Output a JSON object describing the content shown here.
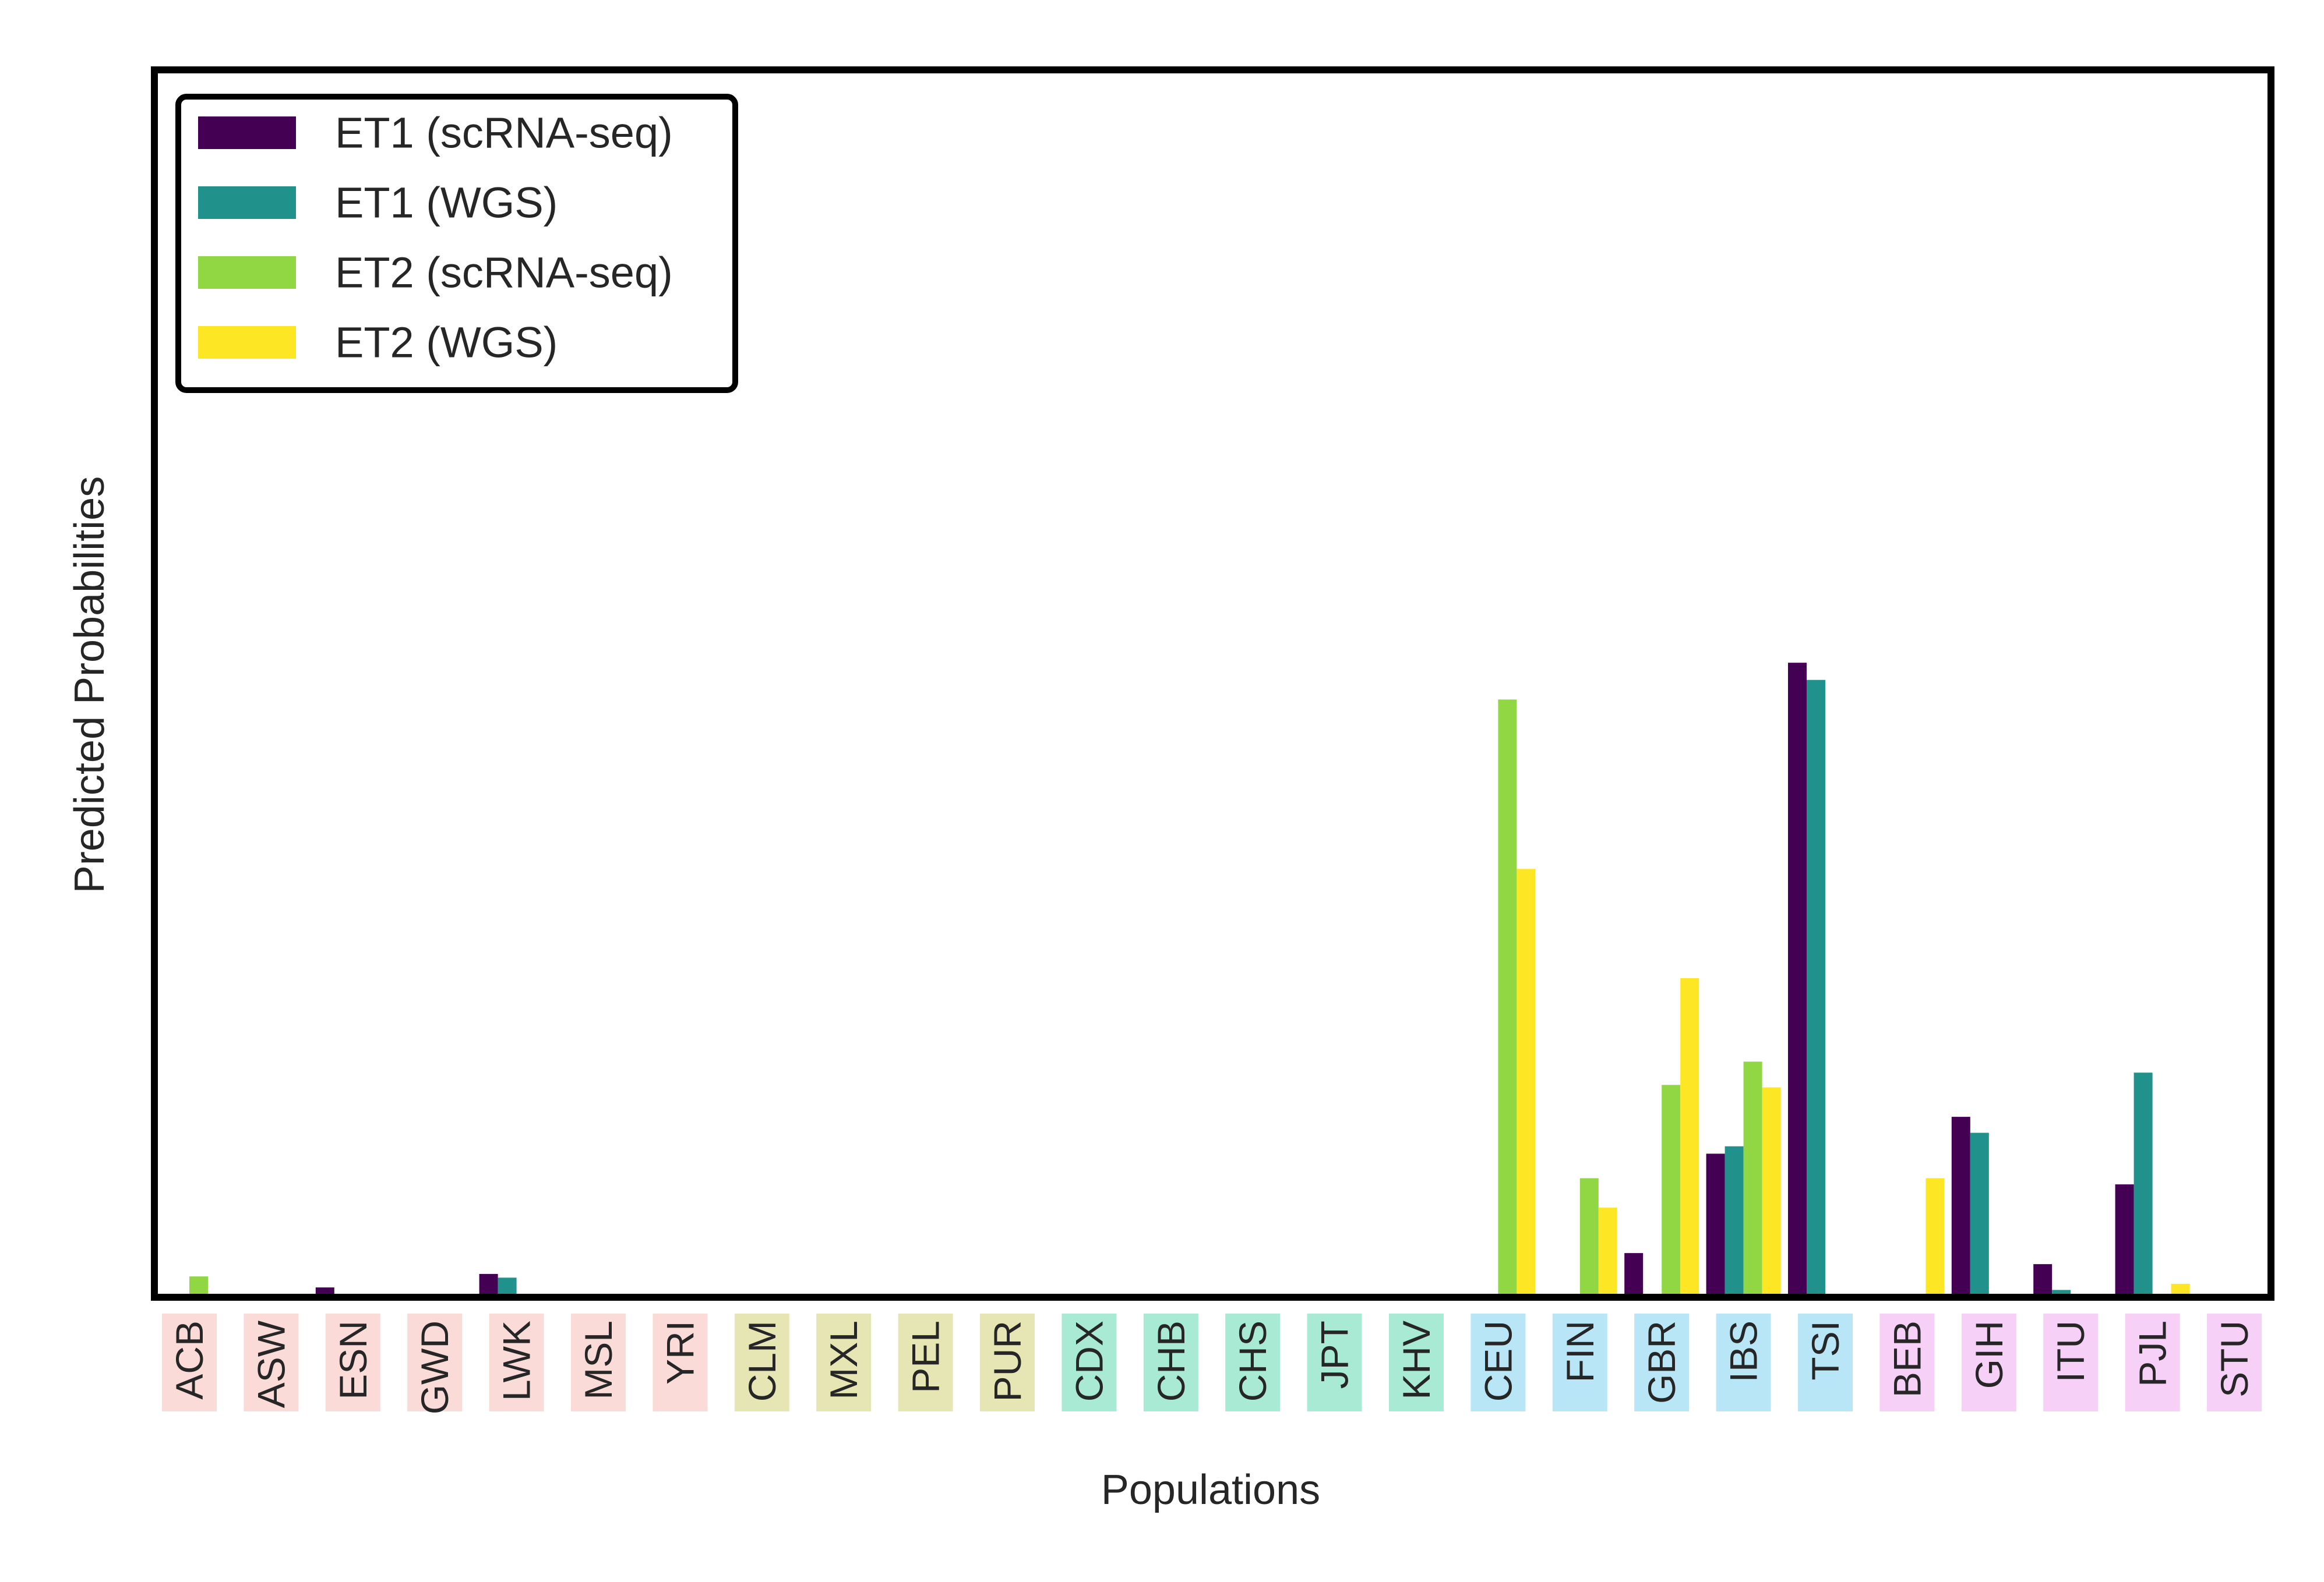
{
  "chart_data": {
    "type": "bar",
    "xlabel": "Populations",
    "ylabel": "Predicted Probabilities",
    "ylim": [
      0,
      1
    ],
    "grid": false,
    "legend_position": "top-left",
    "categories": [
      "ACB",
      "ASW",
      "ESN",
      "GWD",
      "LWK",
      "MSL",
      "YRI",
      "CLM",
      "MXL",
      "PEL",
      "PUR",
      "CDX",
      "CHB",
      "CHS",
      "JPT",
      "KHV",
      "CEU",
      "FIN",
      "GBR",
      "IBS",
      "TSI",
      "BEB",
      "GIH",
      "ITU",
      "PJL",
      "STU"
    ],
    "category_groups": [
      {
        "color": "#fadbd8",
        "members": [
          "ACB",
          "ASW",
          "ESN",
          "GWD",
          "LWK",
          "MSL",
          "YRI"
        ]
      },
      {
        "color": "#e6e6b4",
        "members": [
          "CLM",
          "MXL",
          "PEL",
          "PUR"
        ]
      },
      {
        "color": "#a8ead3",
        "members": [
          "CDX",
          "CHB",
          "CHS",
          "JPT",
          "KHV"
        ]
      },
      {
        "color": "#b8e6f6",
        "members": [
          "CEU",
          "FIN",
          "GBR",
          "IBS",
          "TSI"
        ]
      },
      {
        "color": "#f7d0f7",
        "members": [
          "BEB",
          "GIH",
          "ITU",
          "PJL",
          "STU"
        ]
      }
    ],
    "series": [
      {
        "name": "ET1 (scRNA-seq)",
        "color": "#440154",
        "values": [
          0,
          0,
          0.008,
          0,
          0.019,
          0,
          0,
          0,
          0,
          0,
          0,
          0,
          0,
          0,
          0,
          0,
          0,
          0,
          0.036,
          0.117,
          0.517,
          0,
          0.147,
          0.027,
          0.092,
          0
        ]
      },
      {
        "name": "ET1 (WGS)",
        "color": "#21918c",
        "values": [
          0,
          0,
          0,
          0,
          0.016,
          0,
          0,
          0,
          0,
          0,
          0,
          0,
          0,
          0,
          0,
          0,
          0,
          0,
          0,
          0.123,
          0.503,
          0,
          0.134,
          0.006,
          0.183,
          0
        ]
      },
      {
        "name": "ET2 (scRNA-seq)",
        "color": "#91d743",
        "values": [
          0.017,
          0,
          0,
          0,
          0,
          0,
          0,
          0,
          0,
          0,
          0,
          0,
          0,
          0,
          0,
          0,
          0.487,
          0.097,
          0.173,
          0.192,
          0,
          0,
          0,
          0,
          0,
          0
        ]
      },
      {
        "name": "ET2 (WGS)",
        "color": "#fde725",
        "values": [
          0,
          0,
          0,
          0,
          0,
          0,
          0,
          0,
          0,
          0,
          0,
          0,
          0,
          0,
          0,
          0,
          0.349,
          0.073,
          0.26,
          0.171,
          0,
          0.097,
          0,
          0,
          0.011,
          0
        ]
      }
    ]
  }
}
